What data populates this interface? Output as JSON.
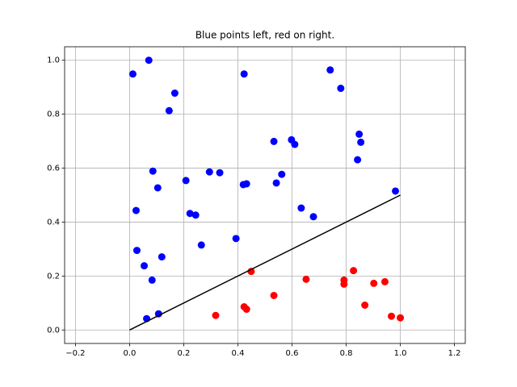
{
  "chart_data": {
    "type": "scatter",
    "title": "Blue points left, red on right.",
    "xlim": [
      -0.24,
      1.24
    ],
    "ylim": [
      -0.05,
      1.05
    ],
    "xticks": [
      {
        "value": -0.2,
        "label": "−0.2"
      },
      {
        "value": 0,
        "label": "0.0"
      },
      {
        "value": 0.2,
        "label": "0.2"
      },
      {
        "value": 0.4,
        "label": "0.4"
      },
      {
        "value": 0.6,
        "label": "0.6"
      },
      {
        "value": 0.8,
        "label": "0.8"
      },
      {
        "value": 1,
        "label": "1.0"
      },
      {
        "value": 1.2,
        "label": "1.2"
      }
    ],
    "yticks": [
      {
        "value": 0,
        "label": "0.0"
      },
      {
        "value": 0.2,
        "label": "0.2"
      },
      {
        "value": 0.4,
        "label": "0.4"
      },
      {
        "value": 0.6,
        "label": "0.6"
      },
      {
        "value": 0.8,
        "label": "0.8"
      },
      {
        "value": 1,
        "label": "1.0"
      }
    ],
    "grid": true,
    "series": [
      {
        "color": "#0000ff",
        "x": [
          0.012,
          0.071,
          0.167,
          0.146,
          0.423,
          0.741,
          0.78,
          0.848,
          0.854,
          0.842,
          0.982,
          0.533,
          0.598,
          0.61,
          0.562,
          0.542,
          0.634,
          0.679,
          0.42,
          0.432,
          0.295,
          0.333,
          0.208,
          0.086,
          0.104,
          0.024,
          0.223,
          0.244,
          0.265,
          0.393,
          0.027,
          0.119,
          0.054,
          0.083,
          0.063,
          0.107
        ],
        "values": [
          0.949,
          1.0,
          0.878,
          0.813,
          0.949,
          0.964,
          0.896,
          0.726,
          0.696,
          0.631,
          0.515,
          0.699,
          0.705,
          0.688,
          0.577,
          0.545,
          0.452,
          0.42,
          0.539,
          0.542,
          0.586,
          0.583,
          0.554,
          0.589,
          0.527,
          0.443,
          0.432,
          0.426,
          0.315,
          0.339,
          0.295,
          0.271,
          0.238,
          0.185,
          0.042,
          0.06
        ]
      },
      {
        "color": "#ff0000",
        "x": [
          0.318,
          0.449,
          0.423,
          0.432,
          0.533,
          0.652,
          0.827,
          0.792,
          0.792,
          0.902,
          0.943,
          0.869,
          0.967,
          1.0
        ],
        "values": [
          0.054,
          0.217,
          0.086,
          0.077,
          0.128,
          0.188,
          0.22,
          0.185,
          0.17,
          0.173,
          0.179,
          0.092,
          0.051,
          0.045
        ]
      },
      {
        "type": "line",
        "color": "#000000",
        "x": [
          0,
          1
        ],
        "values": [
          0,
          0.5
        ]
      }
    ]
  }
}
